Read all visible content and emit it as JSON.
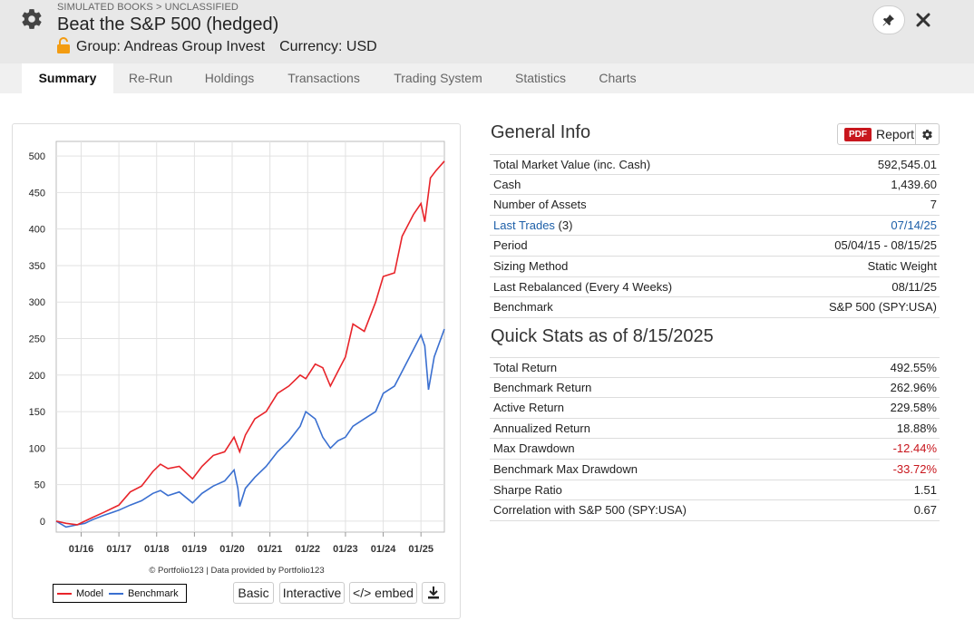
{
  "header": {
    "breadcrumb": "SIMULATED BOOKS > UNCLASSIFIED",
    "title": "Beat the S&P 500 (hedged)",
    "group": "Group: Andreas Group Invest",
    "currency": "Currency: USD"
  },
  "tabs": [
    "Summary",
    "Re-Run",
    "Holdings",
    "Transactions",
    "Trading System",
    "Statistics",
    "Charts"
  ],
  "active_tab": "Summary",
  "chart": {
    "credit": "© Portfolio123 | Data provided by Portfolio123",
    "legend_model": "Model",
    "legend_benchmark": "Benchmark",
    "btn_basic": "Basic",
    "btn_interactive": "Interactive",
    "btn_embed": "</> embed",
    "model_color": "#e8242a",
    "benchmark_color": "#3a6fd0"
  },
  "chart_data": {
    "type": "line",
    "title": "",
    "xlabel": "",
    "ylabel": "",
    "x_ticks": [
      "01/16",
      "01/17",
      "01/18",
      "01/19",
      "01/20",
      "01/21",
      "01/22",
      "01/23",
      "01/24",
      "01/25"
    ],
    "y_ticks": [
      0,
      50,
      100,
      150,
      200,
      250,
      300,
      350,
      400,
      450,
      500
    ],
    "ylim": [
      -15,
      520
    ],
    "xlim": [
      2015.34,
      2025.62
    ],
    "series": [
      {
        "name": "Model",
        "x": [
          2015.34,
          2015.6,
          2015.9,
          2016.1,
          2016.3,
          2016.6,
          2017.0,
          2017.3,
          2017.6,
          2017.9,
          2018.1,
          2018.3,
          2018.6,
          2018.95,
          2019.2,
          2019.5,
          2019.8,
          2020.05,
          2020.2,
          2020.35,
          2020.6,
          2020.9,
          2021.2,
          2021.5,
          2021.8,
          2021.95,
          2022.2,
          2022.4,
          2022.6,
          2022.8,
          2023.0,
          2023.2,
          2023.5,
          2023.8,
          2024.0,
          2024.3,
          2024.5,
          2024.8,
          2025.0,
          2025.1,
          2025.25,
          2025.4,
          2025.62
        ],
        "values": [
          0,
          -3,
          -5,
          0,
          5,
          12,
          22,
          40,
          48,
          68,
          78,
          72,
          75,
          58,
          75,
          90,
          95,
          115,
          95,
          118,
          140,
          150,
          175,
          185,
          200,
          195,
          215,
          210,
          185,
          205,
          225,
          270,
          260,
          300,
          335,
          340,
          390,
          420,
          435,
          410,
          470,
          480,
          493
        ]
      },
      {
        "name": "Benchmark",
        "x": [
          2015.34,
          2015.6,
          2015.9,
          2016.1,
          2016.3,
          2016.6,
          2017.0,
          2017.3,
          2017.6,
          2017.9,
          2018.1,
          2018.3,
          2018.6,
          2018.95,
          2019.2,
          2019.5,
          2019.8,
          2020.05,
          2020.15,
          2020.2,
          2020.35,
          2020.6,
          2020.9,
          2021.2,
          2021.5,
          2021.8,
          2021.95,
          2022.2,
          2022.4,
          2022.6,
          2022.8,
          2023.0,
          2023.2,
          2023.5,
          2023.8,
          2024.0,
          2024.3,
          2024.5,
          2024.8,
          2025.0,
          2025.1,
          2025.2,
          2025.35,
          2025.62
        ],
        "values": [
          0,
          -8,
          -5,
          -3,
          2,
          8,
          15,
          22,
          28,
          38,
          42,
          35,
          40,
          25,
          38,
          48,
          55,
          70,
          45,
          20,
          45,
          60,
          75,
          95,
          110,
          130,
          150,
          140,
          115,
          100,
          110,
          115,
          130,
          140,
          150,
          175,
          185,
          205,
          235,
          255,
          240,
          180,
          225,
          263
        ]
      }
    ]
  },
  "general_info": {
    "title": "General Info",
    "report_badge": "PDF",
    "report_label": "Report",
    "rows": [
      {
        "label": "Total Market Value (inc. Cash)",
        "value": "592,545.01"
      },
      {
        "label": "Cash",
        "value": "1,439.60"
      },
      {
        "label": "Number of Assets",
        "value": "7"
      },
      {
        "label": "Last Trades",
        "label_suffix": " (3)",
        "value": "07/14/25",
        "link": true
      },
      {
        "label": "Period",
        "value": "05/04/15 - 08/15/25"
      },
      {
        "label": "Sizing Method",
        "value": "Static Weight"
      },
      {
        "label": "Last Rebalanced (Every 4 Weeks)",
        "value": "08/11/25"
      },
      {
        "label": "Benchmark",
        "value": "S&P 500 (SPY:USA)"
      }
    ]
  },
  "quick_stats": {
    "title": "Quick Stats as of 8/15/2025",
    "rows": [
      {
        "label": "Total Return",
        "value": "492.55%"
      },
      {
        "label": "Benchmark Return",
        "value": "262.96%"
      },
      {
        "label": "Active Return",
        "value": "229.58%"
      },
      {
        "label": "Annualized Return",
        "value": "18.88%"
      },
      {
        "label": "Max Drawdown",
        "value": "-12.44%",
        "negative": true
      },
      {
        "label": "Benchmark Max Drawdown",
        "value": "-33.72%",
        "negative": true
      },
      {
        "label": "Sharpe Ratio",
        "value": "1.51"
      },
      {
        "label": "Correlation with S&P 500 (SPY:USA)",
        "value": "0.67"
      }
    ]
  }
}
